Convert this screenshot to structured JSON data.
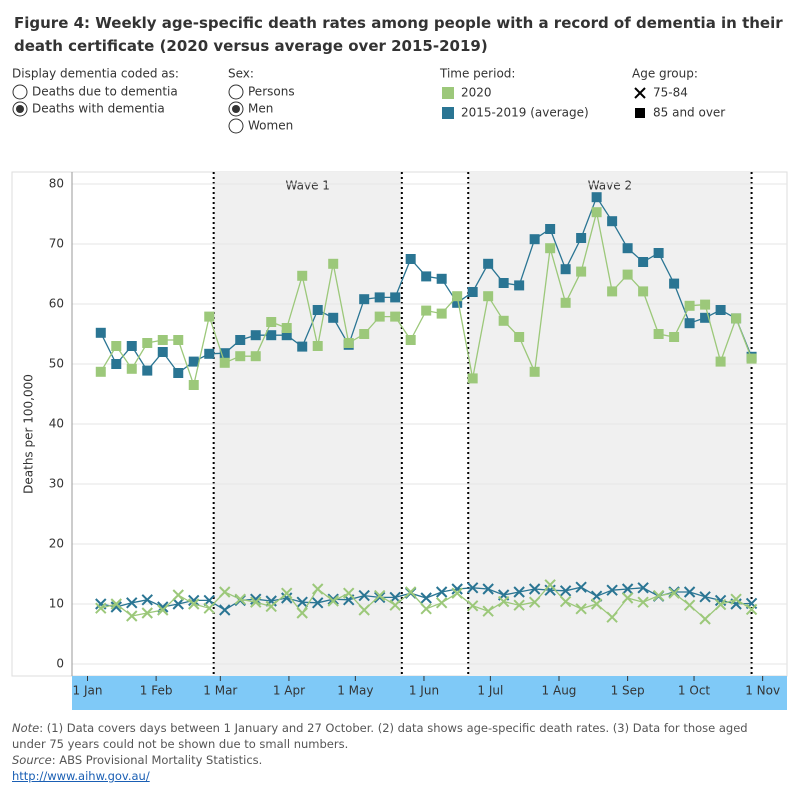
{
  "header": {
    "title": "Figure 4: Weekly age-specific death rates among people with a record of dementia in their death certificate (2020 versus average over 2015-2019)"
  },
  "filters": [
    {
      "label": "Display dementia coded as:",
      "options": [
        "Deaths due to dementia",
        "Deaths with dementia"
      ],
      "selected": 1
    },
    {
      "label": "Sex:",
      "options": [
        "Persons",
        "Men",
        "Women"
      ],
      "selected": 1
    }
  ],
  "chart_data": {
    "type": "line",
    "y_label": "Deaths per 100,000",
    "x": [
      6,
      13,
      20,
      27,
      34,
      41,
      48,
      55,
      62,
      69,
      76,
      83,
      90,
      97,
      104,
      111,
      118,
      125,
      132,
      139,
      146,
      153,
      160,
      167,
      174,
      181,
      188,
      195,
      202,
      209,
      216,
      223,
      230,
      237,
      244,
      251,
      258,
      265,
      272,
      279,
      286,
      293,
      300
    ],
    "xlim": [
      -7,
      316
    ],
    "xticks": [
      {
        "value": 0,
        "label": "1 Jan"
      },
      {
        "value": 31,
        "label": "1 Feb"
      },
      {
        "value": 60,
        "label": "1 Mar"
      },
      {
        "value": 91,
        "label": "1 Apr"
      },
      {
        "value": 121,
        "label": "1 May"
      },
      {
        "value": 152,
        "label": "1 Jun"
      },
      {
        "value": 182,
        "label": "1 Jul"
      },
      {
        "value": 213,
        "label": "1 Aug"
      },
      {
        "value": 244,
        "label": "1 Sep"
      },
      {
        "value": 274,
        "label": "1 Oct"
      },
      {
        "value": 305,
        "label": "1 Nov"
      }
    ],
    "ylim": [
      -2,
      82
    ],
    "yticks": [
      0,
      10,
      20,
      30,
      40,
      50,
      60,
      70,
      80
    ],
    "waves": [
      {
        "label": "Wave 1",
        "start": 57,
        "end": 142
      },
      {
        "label": "Wave 2",
        "start": 172,
        "end": 300
      }
    ],
    "legend_period": {
      "title": "Time period:",
      "items": [
        {
          "name": "2020",
          "color": "#9cc87a"
        },
        {
          "name": "2015-2019 (average)",
          "color": "#2a7593"
        }
      ]
    },
    "legend_age": {
      "title": "Age group:",
      "items": [
        {
          "name": "75-84",
          "marker": "x"
        },
        {
          "name": "85 and over",
          "marker": "square"
        }
      ]
    },
    "series": [
      {
        "period": 1,
        "age": 1,
        "values": [
          55.2,
          50,
          53,
          48.9,
          52,
          48.5,
          50.4,
          51.7,
          51.8,
          54,
          54.8,
          54.8,
          54.8,
          52.9,
          59,
          57.7,
          53.2,
          60.8,
          61.1,
          61.1,
          67.5,
          64.6,
          64.2,
          60.2,
          62,
          66.7,
          63.5,
          63.1,
          70.8,
          72.5,
          65.8,
          71,
          77.8,
          73.8,
          69.3,
          67,
          68.5,
          63.4,
          56.8,
          57.7,
          59,
          57.6,
          51.2
        ]
      },
      {
        "period": 0,
        "age": 1,
        "values": [
          48.7,
          53,
          49.2,
          53.5,
          54,
          54,
          46.5,
          57.9,
          50.2,
          51.3,
          51.3,
          57,
          56,
          64.7,
          53,
          66.7,
          53.5,
          55,
          57.9,
          57.9,
          54,
          58.9,
          58.4,
          61.3,
          47.6,
          61.3,
          57.2,
          54.5,
          48.7,
          69.3,
          60.2,
          65.4,
          75.3,
          62.1,
          64.9,
          62.1,
          55,
          54.5,
          59.7,
          59.9,
          50.4,
          57.6,
          50.9
        ]
      },
      {
        "period": 1,
        "age": 0,
        "values": [
          10,
          9.5,
          10.2,
          10.7,
          9.5,
          10,
          10.6,
          10.6,
          9,
          10.6,
          10.8,
          10.5,
          11,
          10.3,
          10.2,
          10.8,
          10.7,
          11.4,
          11.1,
          11.1,
          11.8,
          11,
          12,
          12.5,
          12.7,
          12.5,
          11.5,
          12,
          12.5,
          12.3,
          12.2,
          12.8,
          11.3,
          12.3,
          12.5,
          12.7,
          11.3,
          12,
          12,
          11.2,
          10.6,
          10,
          10.1
        ]
      },
      {
        "period": 0,
        "age": 0,
        "values": [
          9.3,
          10,
          8,
          8.5,
          9,
          11.5,
          10,
          9.3,
          12,
          10.8,
          10.3,
          9.6,
          11.8,
          8.5,
          12.5,
          10.5,
          11.8,
          9,
          11.4,
          9.8,
          12,
          9.2,
          10.2,
          11.8,
          9.7,
          8.8,
          10.4,
          9.8,
          10.3,
          13.2,
          10.4,
          9.2,
          10,
          7.8,
          11,
          10.3,
          11.4,
          11.8,
          9.8,
          7.5,
          9.9,
          10.8,
          9.1
        ]
      }
    ]
  },
  "notes": {
    "note_label": "Note",
    "note_text": ": (1) Data covers days between 1 January and 27 October. (2) data shows age-specific death rates. (3) Data for those aged under 75 years could not be shown due to small numbers.",
    "source_label": "Source",
    "source_text": ": ABS Provisional Mortality Statistics.",
    "link": "http://www.aihw.gov.au/"
  }
}
